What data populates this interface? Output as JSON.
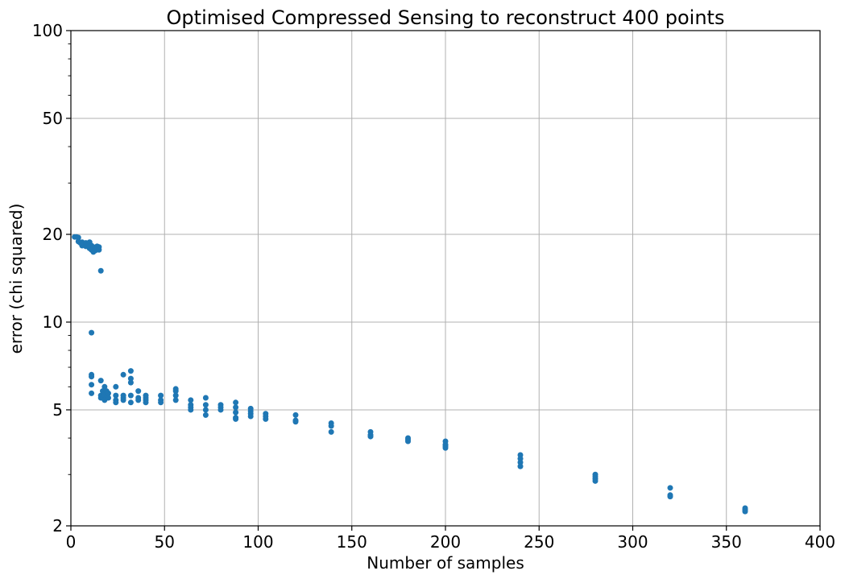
{
  "chart_data": {
    "type": "scatter",
    "title": "Optimised Compressed Sensing to reconstruct 400 points",
    "xlabel": "Number of samples",
    "ylabel": "error (chi squared)",
    "xlim": [
      0,
      400
    ],
    "ylim": [
      2,
      100
    ],
    "yscale": "log",
    "grid": true,
    "x_ticks": [
      0,
      50,
      100,
      150,
      200,
      250,
      300,
      350,
      400
    ],
    "x_tick_labels": [
      "0",
      "50",
      "100",
      "150",
      "200",
      "250",
      "300",
      "350",
      "400"
    ],
    "y_ticks": [
      2,
      5,
      10,
      20,
      50,
      100
    ],
    "y_tick_labels": [
      "2",
      "5",
      "10",
      "20",
      "50",
      "100"
    ],
    "y_minor_ticks": [
      3,
      4,
      6,
      7,
      8,
      9,
      30,
      40,
      60,
      70,
      80,
      90
    ],
    "marker_color": "#1f77b4",
    "series": [
      {
        "points": [
          [
            2,
            19.6
          ],
          [
            3,
            19.6
          ],
          [
            4,
            19.5
          ],
          [
            4,
            18.9
          ],
          [
            5,
            18.7
          ],
          [
            6,
            18.8
          ],
          [
            6,
            18.3
          ],
          [
            7,
            18.6
          ],
          [
            8,
            18.7
          ],
          [
            8,
            18.2
          ],
          [
            9,
            18.5
          ],
          [
            10,
            18.8
          ],
          [
            10,
            17.9
          ],
          [
            11,
            18.3
          ],
          [
            11,
            17.7
          ],
          [
            12,
            18.1
          ],
          [
            12,
            17.4
          ],
          [
            13,
            18.0
          ],
          [
            13,
            17.6
          ],
          [
            14,
            18.2
          ],
          [
            14,
            17.8
          ],
          [
            15,
            18.1
          ],
          [
            15,
            17.7
          ],
          [
            16,
            15.0
          ],
          [
            11,
            9.2
          ],
          [
            11,
            6.6
          ],
          [
            11,
            6.5
          ],
          [
            11,
            6.1
          ],
          [
            11,
            5.7
          ],
          [
            16,
            6.3
          ],
          [
            16,
            5.6
          ],
          [
            16,
            5.5
          ],
          [
            17,
            5.8
          ],
          [
            17,
            5.5
          ],
          [
            18,
            6.0
          ],
          [
            18,
            5.7
          ],
          [
            18,
            5.6
          ],
          [
            18,
            5.4
          ],
          [
            19,
            5.8
          ],
          [
            19,
            5.5
          ],
          [
            20,
            5.7
          ],
          [
            20,
            5.5
          ],
          [
            24,
            6.0
          ],
          [
            24,
            5.6
          ],
          [
            24,
            5.4
          ],
          [
            24,
            5.3
          ],
          [
            28,
            6.6
          ],
          [
            28,
            5.6
          ],
          [
            28,
            5.5
          ],
          [
            28,
            5.4
          ],
          [
            32,
            6.8
          ],
          [
            32,
            6.4
          ],
          [
            32,
            6.2
          ],
          [
            32,
            5.6
          ],
          [
            32,
            5.3
          ],
          [
            36,
            5.8
          ],
          [
            36,
            5.5
          ],
          [
            36,
            5.4
          ],
          [
            40,
            5.6
          ],
          [
            40,
            5.5
          ],
          [
            40,
            5.4
          ],
          [
            40,
            5.3
          ],
          [
            48,
            5.6
          ],
          [
            48,
            5.4
          ],
          [
            48,
            5.3
          ],
          [
            56,
            5.9
          ],
          [
            56,
            5.8
          ],
          [
            56,
            5.6
          ],
          [
            56,
            5.4
          ],
          [
            64,
            5.4
          ],
          [
            64,
            5.2
          ],
          [
            64,
            5.1
          ],
          [
            64,
            5.0
          ],
          [
            72,
            5.5
          ],
          [
            72,
            5.2
          ],
          [
            72,
            5.0
          ],
          [
            72,
            4.8
          ],
          [
            80,
            5.2
          ],
          [
            80,
            5.1
          ],
          [
            80,
            5.0
          ],
          [
            88,
            5.3
          ],
          [
            88,
            5.1
          ],
          [
            88,
            4.9
          ],
          [
            88,
            4.7
          ],
          [
            88,
            4.65
          ],
          [
            96,
            5.05
          ],
          [
            96,
            4.95
          ],
          [
            96,
            4.85
          ],
          [
            96,
            4.75
          ],
          [
            104,
            4.85
          ],
          [
            104,
            4.75
          ],
          [
            104,
            4.65
          ],
          [
            120,
            4.8
          ],
          [
            120,
            4.6
          ],
          [
            120,
            4.55
          ],
          [
            139,
            4.5
          ],
          [
            139,
            4.4
          ],
          [
            139,
            4.2
          ],
          [
            160,
            4.2
          ],
          [
            160,
            4.1
          ],
          [
            160,
            4.05
          ],
          [
            180,
            4.0
          ],
          [
            180,
            3.95
          ],
          [
            180,
            3.9
          ],
          [
            200,
            3.9
          ],
          [
            200,
            3.8
          ],
          [
            200,
            3.75
          ],
          [
            200,
            3.7
          ],
          [
            240,
            3.5
          ],
          [
            240,
            3.4
          ],
          [
            240,
            3.3
          ],
          [
            240,
            3.2
          ],
          [
            280,
            3.0
          ],
          [
            280,
            2.95
          ],
          [
            280,
            2.9
          ],
          [
            280,
            2.85
          ],
          [
            320,
            2.7
          ],
          [
            320,
            2.55
          ],
          [
            320,
            2.52
          ],
          [
            360,
            2.3
          ],
          [
            360,
            2.27
          ],
          [
            360,
            2.24
          ]
        ]
      }
    ]
  }
}
